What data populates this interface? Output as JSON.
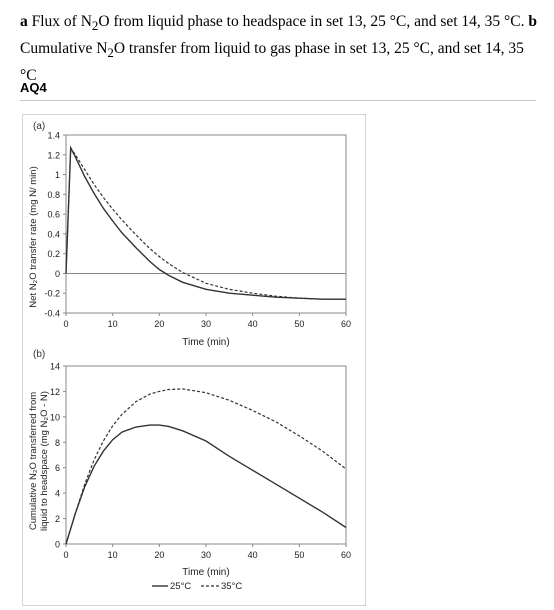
{
  "caption": {
    "part_a_letter": "a",
    "part_a_text_1": " Flux of N",
    "part_a_sub_1": "2",
    "part_a_text_2": "O from liquid phase to headspace in set 13, 25 °C, and set 14, 35 °C. ",
    "part_b_letter": "b",
    "part_b_text_1": " Cumulative N",
    "part_b_sub_1": "2",
    "part_b_text_2": "O transfer from liquid to gas phase in set 13, 25 °C, and set 14, 35 °C"
  },
  "query_tag": "AQ4",
  "legend": {
    "solid_label": "25°C",
    "dashed_label": "35°C"
  },
  "chart_data": [
    {
      "type": "line",
      "panel_label": "(a)",
      "xlabel": "Time (min)",
      "ylabel": "Net N₂O transfer rate (mg N/ min)",
      "xlim": [
        0,
        60
      ],
      "ylim": [
        -0.4,
        1.4
      ],
      "xticks": [
        0,
        10,
        20,
        30,
        40,
        50,
        60
      ],
      "yticks": [
        -0.4,
        -0.2,
        0,
        0.2,
        0.4,
        0.6,
        0.8,
        1,
        1.2,
        1.4
      ],
      "ytick_labels": [
        "-0.4",
        "-0.2",
        "0",
        "0.2",
        "0.4",
        "0.6",
        "0.8",
        "1",
        "1.2",
        "1.4"
      ],
      "grid": false,
      "zero_line": true,
      "series": [
        {
          "name": "25°C",
          "style": "solid",
          "x": [
            0,
            1,
            2,
            4,
            6,
            8,
            10,
            12,
            15,
            18,
            20,
            22,
            25,
            30,
            35,
            40,
            45,
            50,
            55,
            60
          ],
          "y": [
            0,
            1.27,
            1.18,
            0.98,
            0.81,
            0.66,
            0.53,
            0.41,
            0.26,
            0.12,
            0.04,
            -0.02,
            -0.09,
            -0.16,
            -0.2,
            -0.22,
            -0.24,
            -0.25,
            -0.26,
            -0.26
          ]
        },
        {
          "name": "35°C",
          "style": "dashed",
          "x": [
            0,
            1,
            2,
            4,
            6,
            8,
            10,
            12,
            15,
            18,
            20,
            22,
            25,
            30,
            35,
            40,
            45,
            50,
            55,
            60
          ],
          "y": [
            0,
            1.27,
            1.2,
            1.05,
            0.9,
            0.77,
            0.65,
            0.54,
            0.39,
            0.25,
            0.17,
            0.1,
            0.01,
            -0.1,
            -0.16,
            -0.2,
            -0.23,
            -0.25,
            -0.26,
            -0.26
          ]
        }
      ]
    },
    {
      "type": "line",
      "panel_label": "(b)",
      "xlabel": "Time (min)",
      "ylabel_line1": "Cumulative N₂O transferred from",
      "ylabel_line2": "liquid to headspace (mg N₂O - N)",
      "xlim": [
        0,
        60
      ],
      "ylim": [
        0,
        14
      ],
      "xticks": [
        0,
        10,
        20,
        30,
        40,
        50,
        60
      ],
      "yticks": [
        0,
        2,
        4,
        6,
        8,
        10,
        12,
        14
      ],
      "grid": false,
      "series": [
        {
          "name": "25°C",
          "style": "solid",
          "x": [
            0,
            1,
            2,
            4,
            6,
            8,
            10,
            12,
            15,
            18,
            20,
            22,
            25,
            30,
            35,
            40,
            45,
            50,
            55,
            60
          ],
          "y": [
            0,
            1.2,
            2.4,
            4.5,
            6.1,
            7.3,
            8.2,
            8.8,
            9.2,
            9.35,
            9.35,
            9.25,
            8.9,
            8.1,
            6.9,
            5.8,
            4.7,
            3.6,
            2.5,
            1.3
          ]
        },
        {
          "name": "35°C",
          "style": "dashed",
          "x": [
            0,
            1,
            2,
            4,
            6,
            8,
            10,
            12,
            15,
            18,
            20,
            22,
            25,
            30,
            35,
            40,
            45,
            50,
            55,
            60
          ],
          "y": [
            0,
            1.2,
            2.4,
            4.7,
            6.6,
            8.1,
            9.3,
            10.2,
            11.2,
            11.8,
            12.0,
            12.15,
            12.2,
            11.9,
            11.3,
            10.5,
            9.6,
            8.5,
            7.3,
            5.9
          ]
        }
      ]
    }
  ]
}
